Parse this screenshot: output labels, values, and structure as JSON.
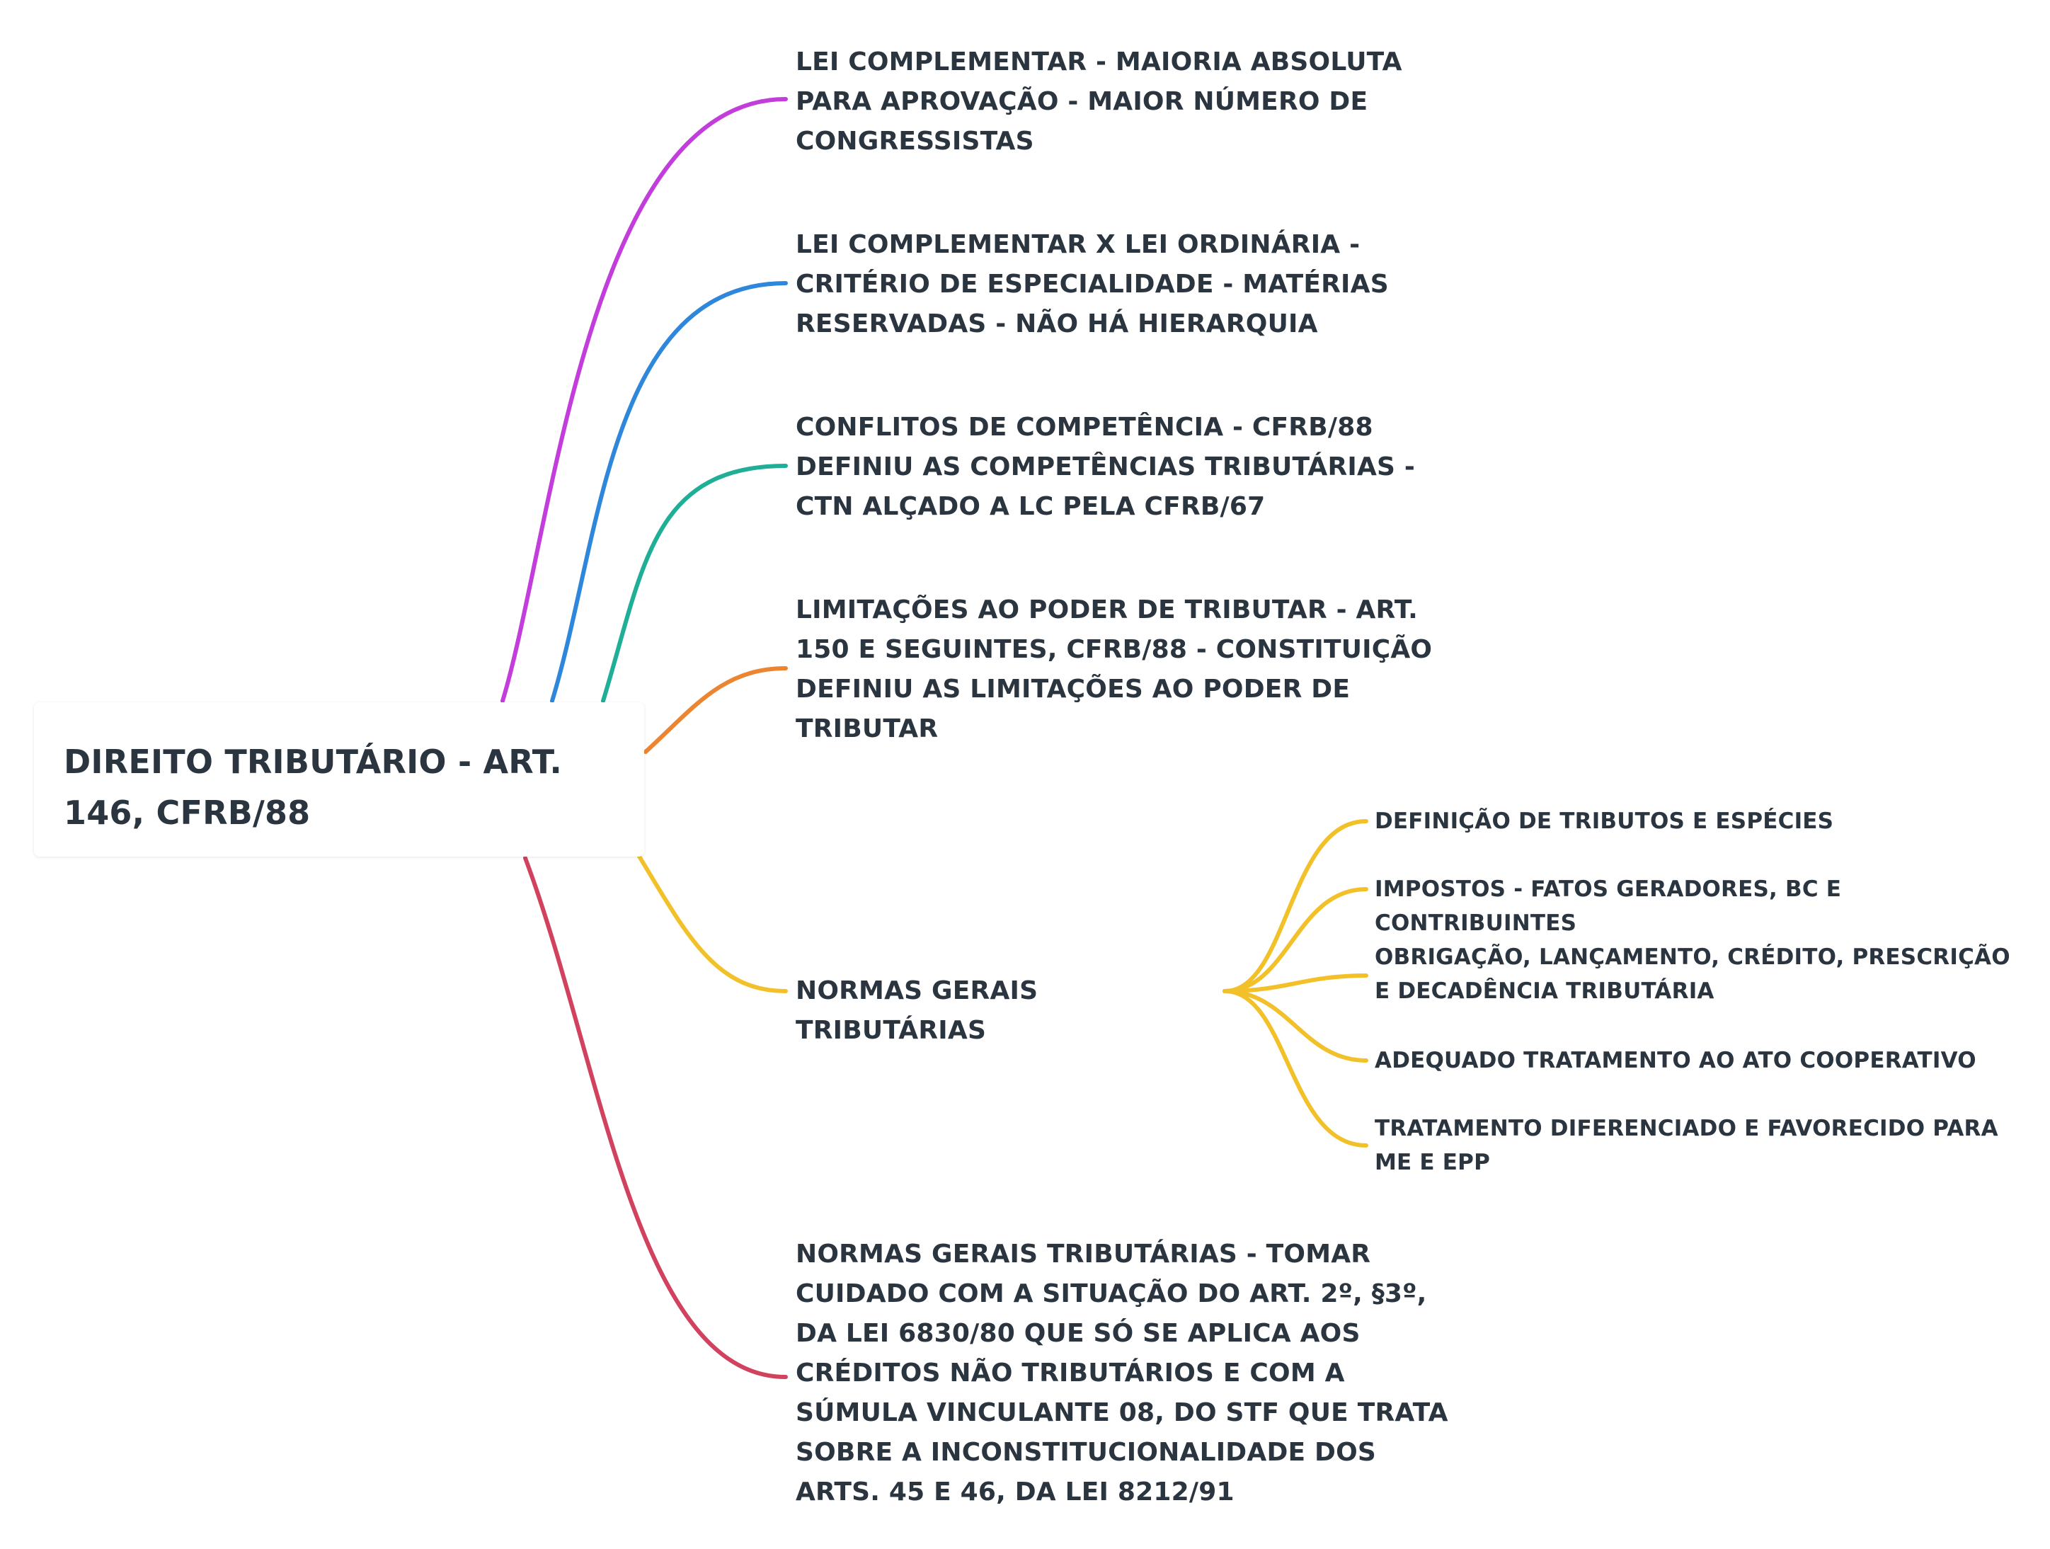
{
  "colors": {
    "text": "#2b3540",
    "branch_purple": "#c23ddb",
    "branch_blue": "#2f87dc",
    "branch_teal": "#1fae96",
    "branch_orange": "#eb8531",
    "branch_yellow": "#f2c12a",
    "branch_red": "#d1425f"
  },
  "mindmap": {
    "root": {
      "label": "DIREITO TRIBUTÁRIO - ART. 146, CFRB/88"
    },
    "branches": [
      {
        "label": "LEI COMPLEMENTAR - MAIORIA ABSOLUTA PARA APROVAÇÃO - MAIOR NÚMERO DE CONGRESSISTAS",
        "color": "#c23ddb"
      },
      {
        "label": "LEI COMPLEMENTAR X LEI ORDINÁRIA - CRITÉRIO DE ESPECIALIDADE - MATÉRIAS RESERVADAS - NÃO HÁ HIERARQUIA",
        "color": "#2f87dc"
      },
      {
        "label": "CONFLITOS DE COMPETÊNCIA - CFRB/88 DEFINIU AS COMPETÊNCIAS TRIBUTÁRIAS - CTN ALÇADO A LC PELA CFRB/67",
        "color": "#1fae96"
      },
      {
        "label": "LIMITAÇÕES AO PODER DE TRIBUTAR - ART. 150 E SEGUINTES, CFRB/88 - CONSTITUIÇÃO DEFINIU AS LIMITAÇÕES AO PODER DE TRIBUTAR",
        "color": "#eb8531"
      },
      {
        "label": "NORMAS GERAIS TRIBUTÁRIAS",
        "color": "#f2c12a",
        "children": [
          {
            "label": "DEFINIÇÃO DE TRIBUTOS E ESPÉCIES"
          },
          {
            "label": "IMPOSTOS - FATOS GERADORES, BC E CONTRIBUINTES"
          },
          {
            "label": "OBRIGAÇÃO, LANÇAMENTO, CRÉDITO, PRESCRIÇÃO E DECADÊNCIA TRIBUTÁRIA"
          },
          {
            "label": "ADEQUADO TRATAMENTO AO ATO COOPERATIVO"
          },
          {
            "label": "TRATAMENTO DIFERENCIADO E FAVORECIDO PARA ME E EPP"
          }
        ]
      },
      {
        "label": "NORMAS GERAIS TRIBUTÁRIAS - TOMAR CUIDADO COM A SITUAÇÃO DO ART. 2º, §3º, DA LEI 6830/80 QUE SÓ SE APLICA AOS CRÉDITOS NÃO TRIBUTÁRIOS E COM A SÚMULA VINCULANTE 08, DO STF QUE TRATA SOBRE A INCONSTITUCIONALIDADE DOS ARTS. 45 E 46, DA LEI 8212/91",
        "color": "#d1425f"
      }
    ]
  }
}
